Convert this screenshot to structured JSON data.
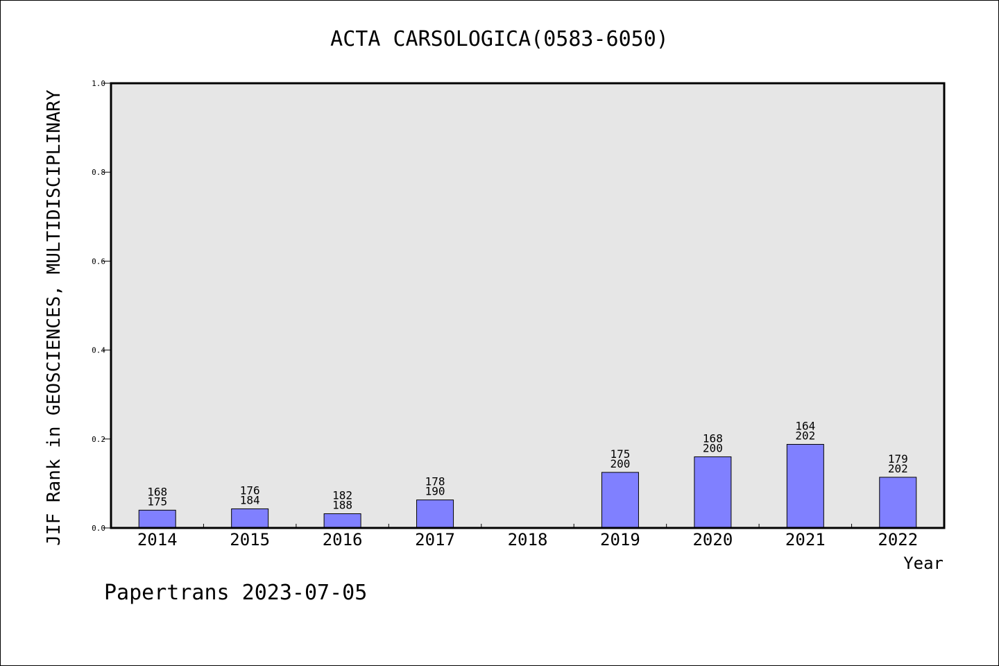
{
  "chart_data": {
    "type": "bar",
    "title": "ACTA CARSOLOGICA(0583-6050)",
    "xlabel": "Year",
    "ylabel": "JIF Rank in GEOSCIENCES, MULTIDISCIPLINARY",
    "ylim": [
      0,
      1.0
    ],
    "yticks": [
      "0.0",
      "0.2",
      "0.4",
      "0.6",
      "0.8",
      "1.0"
    ],
    "categories": [
      "2014",
      "2015",
      "2016",
      "2017",
      "2018",
      "2019",
      "2020",
      "2021",
      "2022"
    ],
    "values": [
      0.04,
      0.043,
      0.032,
      0.063,
      null,
      0.125,
      0.16,
      0.188,
      0.114
    ],
    "labels": [
      [
        "168",
        "175"
      ],
      [
        "176",
        "184"
      ],
      [
        "182",
        "188"
      ],
      [
        "178",
        "190"
      ],
      null,
      [
        "175",
        "200"
      ],
      [
        "168",
        "200"
      ],
      [
        "164",
        "202"
      ],
      [
        "179",
        "202"
      ]
    ],
    "bar_color": "#8080ff",
    "plot_bg": "#e6e6e6",
    "grid": false,
    "legend": "none"
  },
  "footer": {
    "note": "Papertrans 2023-07-05"
  }
}
